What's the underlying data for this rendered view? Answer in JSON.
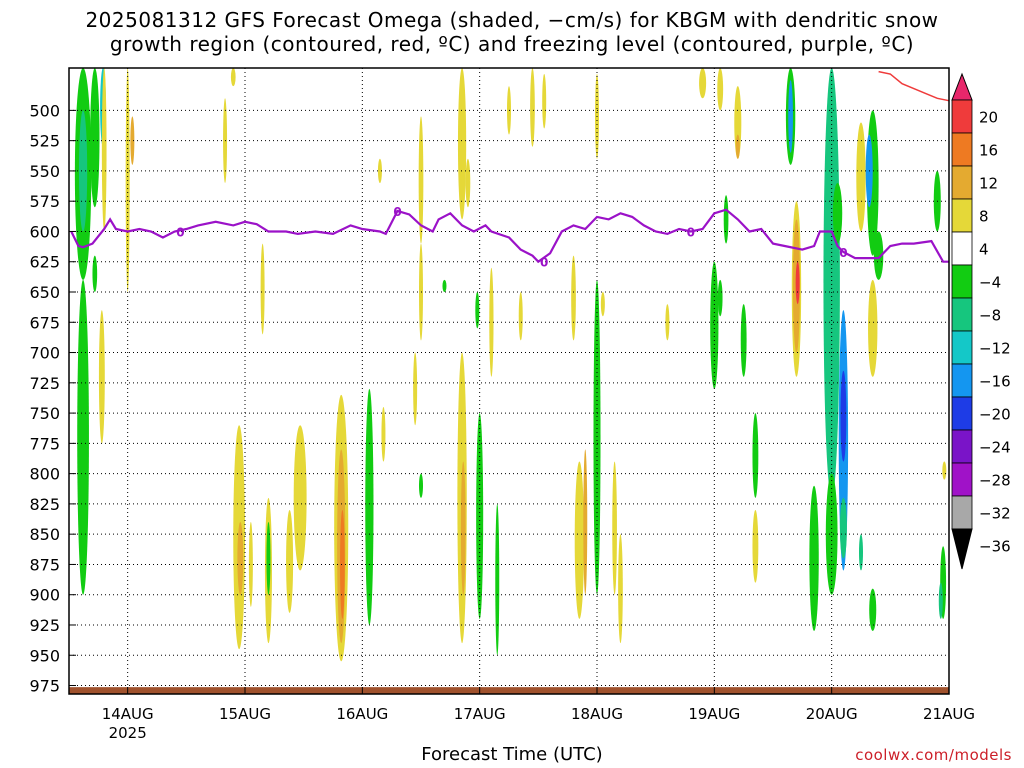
{
  "title_line1": "2025081312 GFS Forecast Omega (shaded, −cm/s) for KBGM with dendritic snow",
  "title_line2": "growth region (contoured, red, ºC) and freezing level (contoured, purple, ºC)",
  "credit": "coolwx.com/models",
  "chart_data": {
    "type": "heatmap",
    "xlabel": "Forecast Time (UTC)",
    "x_tick_labels": [
      "14AUG",
      "15AUG",
      "16AUG",
      "17AUG",
      "18AUG",
      "19AUG",
      "20AUG",
      "21AUG"
    ],
    "x_year_label": "2025",
    "x_range_days": [
      13.5,
      21.0
    ],
    "y_tick_labels": [
      "500",
      "525",
      "550",
      "575",
      "600",
      "625",
      "650",
      "675",
      "700",
      "725",
      "750",
      "775",
      "800",
      "825",
      "850",
      "875",
      "900",
      "925",
      "950",
      "975"
    ],
    "y_range_hPa": [
      465,
      982
    ],
    "colorbar": {
      "labels": [
        "20",
        "16",
        "12",
        "8",
        "4",
        "−4",
        "−8",
        "−12",
        "−16",
        "−20",
        "−24",
        "−28",
        "−32",
        "−36"
      ],
      "colors": [
        "#e8276b",
        "#ef3b3b",
        "#ee7a22",
        "#e4aa30",
        "#e5d838",
        "#ffffff",
        "#12cc12",
        "#16c67e",
        "#14c8c8",
        "#1496f0",
        "#1e3ce6",
        "#7a14c8",
        "#a012c8",
        "#a8a8a8",
        "#000000"
      ]
    },
    "contour_labels": {
      "freezing_level": "0",
      "freezing_level_color": "#9b12c8",
      "dendritic_color": "#ef3b3b",
      "ground_color": "#a0522d"
    },
    "freezing_level_hPa": [
      [
        13.52,
        600
      ],
      [
        13.58,
        612
      ],
      [
        13.62,
        613
      ],
      [
        13.7,
        610
      ],
      [
        13.8,
        598
      ],
      [
        13.85,
        590
      ],
      [
        13.9,
        598
      ],
      [
        14.0,
        600
      ],
      [
        14.1,
        598
      ],
      [
        14.2,
        600
      ],
      [
        14.3,
        605
      ],
      [
        14.4,
        600
      ],
      [
        14.5,
        598
      ],
      [
        14.6,
        595
      ],
      [
        14.75,
        592
      ],
      [
        14.9,
        595
      ],
      [
        15.0,
        592
      ],
      [
        15.1,
        594
      ],
      [
        15.2,
        600
      ],
      [
        15.35,
        600
      ],
      [
        15.45,
        602
      ],
      [
        15.6,
        600
      ],
      [
        15.75,
        602
      ],
      [
        15.9,
        595
      ],
      [
        16.0,
        598
      ],
      [
        16.15,
        600
      ],
      [
        16.2,
        602
      ],
      [
        16.3,
        583
      ],
      [
        16.4,
        586
      ],
      [
        16.5,
        595
      ],
      [
        16.6,
        600
      ],
      [
        16.65,
        590
      ],
      [
        16.75,
        585
      ],
      [
        16.85,
        595
      ],
      [
        16.95,
        600
      ],
      [
        17.05,
        595
      ],
      [
        17.1,
        600
      ],
      [
        17.25,
        605
      ],
      [
        17.35,
        615
      ],
      [
        17.45,
        620
      ],
      [
        17.5,
        625
      ],
      [
        17.6,
        618
      ],
      [
        17.7,
        600
      ],
      [
        17.8,
        595
      ],
      [
        17.9,
        598
      ],
      [
        18.0,
        588
      ],
      [
        18.1,
        590
      ],
      [
        18.2,
        585
      ],
      [
        18.3,
        588
      ],
      [
        18.4,
        595
      ],
      [
        18.5,
        600
      ],
      [
        18.6,
        602
      ],
      [
        18.7,
        598
      ],
      [
        18.8,
        600
      ],
      [
        18.9,
        598
      ],
      [
        19.0,
        585
      ],
      [
        19.1,
        582
      ],
      [
        19.2,
        590
      ],
      [
        19.3,
        600
      ],
      [
        19.4,
        598
      ],
      [
        19.5,
        610
      ],
      [
        19.6,
        612
      ],
      [
        19.75,
        615
      ],
      [
        19.85,
        612
      ],
      [
        19.9,
        600
      ],
      [
        20.0,
        600
      ],
      [
        20.05,
        612
      ],
      [
        20.1,
        617
      ],
      [
        20.2,
        622
      ],
      [
        20.3,
        622
      ],
      [
        20.4,
        622
      ],
      [
        20.5,
        612
      ],
      [
        20.6,
        610
      ],
      [
        20.7,
        610
      ],
      [
        20.85,
        608
      ],
      [
        20.95,
        625
      ],
      [
        21.0,
        625
      ]
    ],
    "dendritic_top_hPa": [
      [
        20.4,
        468
      ],
      [
        20.5,
        470
      ],
      [
        20.6,
        478
      ],
      [
        20.7,
        482
      ],
      [
        20.8,
        486
      ],
      [
        20.9,
        490
      ],
      [
        21.0,
        492
      ]
    ],
    "ground_pressure_hPa": 978
  }
}
